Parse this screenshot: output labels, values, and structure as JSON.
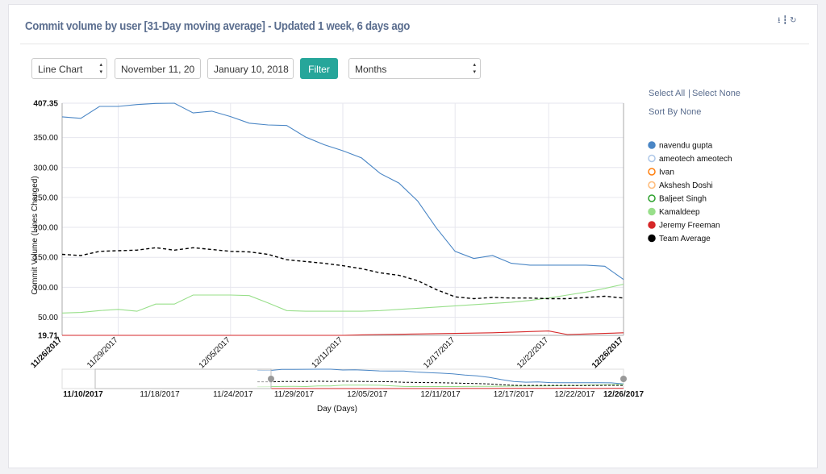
{
  "header": {
    "title": "Commit volume by user [31-Day moving average] - Updated 1 week, 6 days ago"
  },
  "controls": {
    "chart_type": "Line Chart",
    "start_date": "November 11, 20",
    "end_date": "January 10, 2018",
    "button": "Filter",
    "period": "Months"
  },
  "legend_controls": {
    "select_all": "Select All",
    "separator": "|",
    "select_none": "Select None",
    "sort": "Sort By None"
  },
  "chart_data": {
    "type": "line",
    "y_label": "Commit Volume (Lines Changed)",
    "x_label": "Day (Days)",
    "x": [
      "11/26/2017",
      "11/27/2017",
      "11/28/2017",
      "11/29/2017",
      "11/30/2017",
      "12/01/2017",
      "12/02/2017",
      "12/03/2017",
      "12/04/2017",
      "12/05/2017",
      "12/06/2017",
      "12/07/2017",
      "12/08/2017",
      "12/09/2017",
      "12/10/2017",
      "12/11/2017",
      "12/12/2017",
      "12/13/2017",
      "12/14/2017",
      "12/15/2017",
      "12/16/2017",
      "12/17/2017",
      "12/18/2017",
      "12/19/2017",
      "12/20/2017",
      "12/21/2017",
      "12/22/2017",
      "12/23/2017",
      "12/24/2017",
      "12/25/2017",
      "12/26/2017"
    ],
    "xlim": [
      "11/26/2017",
      "12/26/2017"
    ],
    "xticks": [
      "11/26/2017",
      "11/29/2017",
      "12/05/2017",
      "12/11/2017",
      "12/17/2017",
      "12/22/2017",
      "12/26/2017"
    ],
    "ylim": [
      19.71,
      407.35
    ],
    "yticks": [
      19.71,
      {
        "value": 50,
        "label": "50.00"
      },
      {
        "value": 100,
        "label": "100.00"
      },
      {
        "value": 150,
        "label": "150.00"
      },
      {
        "value": 200,
        "label": "200.00"
      },
      {
        "value": 250,
        "label": "250.00"
      },
      {
        "value": 300,
        "label": "300.00"
      },
      {
        "value": 350,
        "label": "350.00"
      },
      407.35
    ],
    "grid": true,
    "series": [
      {
        "name": "navendu gupta",
        "color": "#4a86c5",
        "values": [
          384.6,
          382,
          402,
          402,
          405,
          407,
          407.35,
          391,
          394,
          385,
          374,
          371,
          370,
          351,
          338,
          328,
          316,
          290,
          274,
          244,
          199,
          160,
          148,
          153,
          140,
          137,
          137,
          137,
          137,
          135,
          113
        ]
      },
      {
        "name": "ameotech ameotech",
        "color": "#aec7e8",
        "visible": false
      },
      {
        "name": "Ivan",
        "color": "#ff7f0e",
        "visible": false
      },
      {
        "name": "Akshesh Doshi",
        "color": "#ffbb78",
        "visible": false
      },
      {
        "name": "Baljeet Singh",
        "color": "#2ca02c",
        "visible": false
      },
      {
        "name": "Kamaldeep",
        "color": "#98df8a",
        "values": [
          57,
          58,
          61,
          63,
          60,
          72,
          72,
          87,
          87,
          87,
          86,
          74,
          61,
          60,
          60,
          60,
          60,
          61,
          63,
          65,
          67,
          69,
          71,
          73,
          75,
          78,
          82,
          87,
          92,
          98,
          105
        ]
      },
      {
        "name": "Jeremy Freeman",
        "color": "#d62728",
        "values": [
          19.71,
          19.71,
          19.71,
          19.71,
          19.71,
          19.71,
          19.71,
          19.71,
          19.71,
          19.71,
          19.71,
          19.71,
          19.71,
          19.71,
          19.71,
          19.71,
          20.5,
          21,
          21.5,
          22,
          22.5,
          23,
          23.5,
          24,
          25,
          26,
          27,
          21,
          22,
          23,
          24
        ]
      },
      {
        "name": "Team Average",
        "color": "#000000",
        "dashed": true,
        "values": [
          155,
          153,
          160,
          161,
          162,
          166,
          162,
          166,
          163,
          160,
          159,
          155,
          146,
          143,
          140,
          136,
          131,
          124,
          120,
          111,
          96,
          84,
          81,
          83,
          82,
          82,
          81,
          81,
          83,
          85,
          82
        ]
      }
    ],
    "navigator": {
      "xlim": [
        "11/10/2017",
        "12/26/2017"
      ],
      "xticks": [
        "11/10/2017",
        "11/18/2017",
        "11/24/2017",
        "11/29/2017",
        "12/05/2017",
        "12/11/2017",
        "12/17/2017",
        "12/22/2017",
        "12/26/2017"
      ]
    }
  }
}
